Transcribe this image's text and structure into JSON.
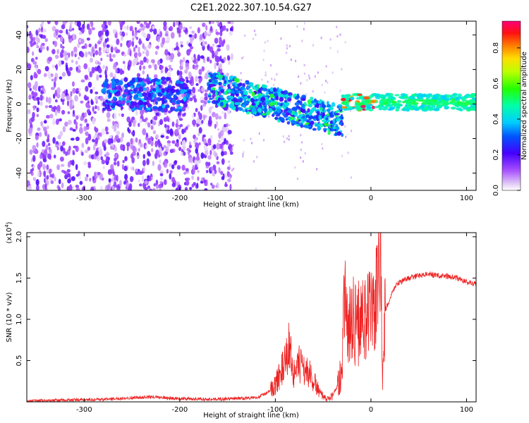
{
  "title": "C2E1.2022.307.10.54.G27",
  "colors": {
    "snr_line": "#ee2222",
    "background": "#ffffff",
    "spectrum_low": "#e6d2f6",
    "spectrum_mid": "#6a00f0",
    "spectrum_high": "#ff0044"
  },
  "chart_data": [
    {
      "type": "heatmap",
      "xlabel": "Height of straight line (km)",
      "ylabel": "Frequency (Hz)",
      "xlim": [
        -360,
        110
      ],
      "ylim": [
        -50,
        48
      ],
      "x_ticks": [
        -300,
        -200,
        -100,
        0,
        100
      ],
      "y_ticks": [
        -40,
        -20,
        0,
        20,
        40
      ],
      "grid": false,
      "colorbar": {
        "label": "Normalized spectral amplitude",
        "range": [
          0.0,
          0.95
        ],
        "ticks": [
          "0.0",
          "0.2",
          "0.4",
          "0.6",
          "0.8"
        ],
        "colormap": "rainbow (white-purple low, red-magenta high)"
      },
      "features": [
        {
          "x_range": [
            -360,
            -140
          ],
          "frequency_range": [
            -50,
            48
          ],
          "amplitude": "low (0.0-0.2)",
          "description": "broadband noise"
        },
        {
          "x_range": [
            -280,
            -190
          ],
          "frequency_range": [
            -5,
            15
          ],
          "amplitude": "0.2-0.4"
        },
        {
          "x_range": [
            -170,
            -30
          ],
          "frequency_center_start": 10,
          "frequency_center_end": -10,
          "amplitude": "0.2-0.5"
        },
        {
          "x_range": [
            -30,
            110
          ],
          "frequency_center": 1,
          "amplitude": "0.5-0.95",
          "description": "narrow band near 0 Hz"
        }
      ]
    },
    {
      "type": "line",
      "xlabel": "Height of straight line (km)",
      "ylabel": "SNR (10 * v/v)",
      "y_multiplier": "(x10^4)",
      "xlim": [
        -360,
        110
      ],
      "ylim": [
        0.0,
        2.05
      ],
      "x_ticks": [
        -300,
        -200,
        -100,
        0,
        100
      ],
      "y_ticks": [
        0.5,
        1.0,
        1.5,
        2.0
      ],
      "grid": false,
      "series": [
        {
          "points": [
            [
              -360,
              0.01
            ],
            [
              -320,
              0.02
            ],
            [
              -280,
              0.03
            ],
            [
              -250,
              0.05
            ],
            [
              -230,
              0.06
            ],
            [
              -200,
              0.04
            ],
            [
              -170,
              0.03
            ],
            [
              -140,
              0.04
            ],
            [
              -120,
              0.05
            ],
            [
              -110,
              0.1
            ],
            [
              -100,
              0.2
            ],
            [
              -95,
              0.35
            ],
            [
              -90,
              0.45
            ],
            [
              -85,
              0.7
            ],
            [
              -80,
              0.3
            ],
            [
              -75,
              0.45
            ],
            [
              -70,
              0.4
            ],
            [
              -65,
              0.35
            ],
            [
              -60,
              0.25
            ],
            [
              -55,
              0.15
            ],
            [
              -50,
              0.05
            ],
            [
              -45,
              0.03
            ],
            [
              -40,
              0.08
            ],
            [
              -35,
              0.2
            ],
            [
              -30,
              0.45
            ],
            [
              -27,
              1.55
            ],
            [
              -24,
              0.75
            ],
            [
              -20,
              1.1
            ],
            [
              -15,
              0.9
            ],
            [
              -10,
              1.05
            ],
            [
              -5,
              1.0
            ],
            [
              0,
              1.1
            ],
            [
              5,
              1.15
            ],
            [
              10,
              1.95
            ],
            [
              12,
              0.2
            ],
            [
              15,
              1.1
            ],
            [
              20,
              1.25
            ],
            [
              25,
              1.4
            ],
            [
              30,
              1.45
            ],
            [
              40,
              1.5
            ],
            [
              50,
              1.53
            ],
            [
              60,
              1.55
            ],
            [
              70,
              1.53
            ],
            [
              80,
              1.52
            ],
            [
              90,
              1.5
            ],
            [
              100,
              1.45
            ],
            [
              110,
              1.43
            ]
          ]
        }
      ]
    }
  ]
}
